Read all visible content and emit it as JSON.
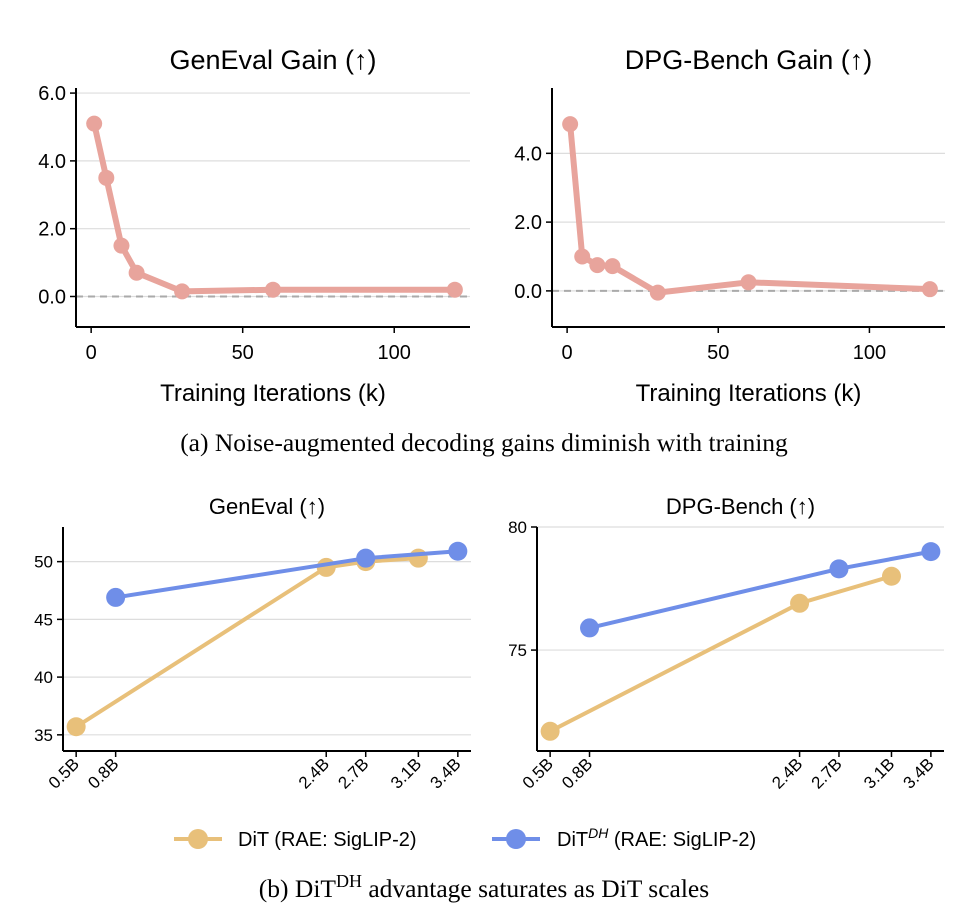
{
  "colors": {
    "gain": "#e8a49c",
    "dit": "#e8c07a",
    "dith": "#6f8ee8",
    "grid": "#dddddd",
    "zero_line": "#aaaaaa",
    "axis": "#000000"
  },
  "captions": {
    "a": "(a) Noise-augmented decoding gains diminish with training",
    "b_prefix": "(b) DiT",
    "b_sup": "DH",
    "b_suffix": " advantage saturates as DiT scales"
  },
  "legend": {
    "dit_label": "DiT (RAE: SigLIP-2)",
    "dith_base": "DiT",
    "dith_sup": "DH",
    "dith_suffix": " (RAE: SigLIP-2)"
  },
  "chart_data": [
    {
      "id": "geneval-gain",
      "type": "line",
      "title": "GenEval Gain (↑)",
      "xlabel": "Training Iterations (k)",
      "ylabel": "",
      "xlim": [
        -5,
        125
      ],
      "ylim": [
        -0.9,
        6.15
      ],
      "xticks": [
        0,
        50,
        100
      ],
      "xtick_labels": [
        "0",
        "50",
        "100"
      ],
      "yticks": [
        0.0,
        2.0,
        4.0,
        6.0
      ],
      "ytick_labels": [
        "0.0",
        "2.0",
        "4.0",
        "6.0"
      ],
      "grid": "y",
      "zero_line": true,
      "series": [
        {
          "name": "GenEval Gain",
          "x": [
            1,
            5,
            10,
            15,
            30,
            60,
            120
          ],
          "values": [
            5.1,
            3.5,
            1.5,
            0.7,
            0.15,
            0.2,
            0.2
          ]
        }
      ]
    },
    {
      "id": "dpg-gain",
      "type": "line",
      "title": "DPG-Bench Gain (↑)",
      "xlabel": "Training Iterations (k)",
      "ylabel": "",
      "xlim": [
        -5,
        125
      ],
      "ylim": [
        -1.05,
        5.9
      ],
      "xticks": [
        0,
        50,
        100
      ],
      "xtick_labels": [
        "0",
        "50",
        "100"
      ],
      "yticks": [
        0.0,
        2.0,
        4.0
      ],
      "ytick_labels": [
        "0.0",
        "2.0",
        "4.0"
      ],
      "grid": "y",
      "zero_line": true,
      "series": [
        {
          "name": "DPG-Bench Gain",
          "x": [
            1,
            5,
            10,
            15,
            30,
            60,
            120
          ],
          "values": [
            4.85,
            1.0,
            0.75,
            0.72,
            -0.05,
            0.25,
            0.05
          ]
        }
      ]
    },
    {
      "id": "geneval-scale",
      "type": "line",
      "title": "GenEval (↑)",
      "xlabel": "",
      "ylabel": "",
      "xlim": [
        0.4,
        3.5
      ],
      "ylim": [
        33.6,
        53.0
      ],
      "xticks": [
        0.5,
        0.8,
        2.4,
        2.7,
        3.1,
        3.4
      ],
      "xtick_labels": [
        "0.5B",
        "0.8B",
        "2.4B",
        "2.7B",
        "3.1B",
        "3.4B"
      ],
      "yticks": [
        35,
        40,
        45,
        50
      ],
      "ytick_labels": [
        "35",
        "40",
        "45",
        "50"
      ],
      "grid": "y",
      "zero_line": false,
      "series": [
        {
          "name": "DiT (RAE: SigLIP-2)",
          "color_key": "dit",
          "x": [
            0.5,
            2.4,
            2.7,
            3.1
          ],
          "values": [
            35.7,
            49.5,
            50.0,
            50.3
          ]
        },
        {
          "name": "DiT^DH (RAE: SigLIP-2)",
          "color_key": "dith",
          "x": [
            0.8,
            2.7,
            3.4
          ],
          "values": [
            46.9,
            50.3,
            50.9
          ]
        }
      ]
    },
    {
      "id": "dpg-scale",
      "type": "line",
      "title": "DPG-Bench (↑)",
      "xlabel": "",
      "ylabel": "",
      "xlim": [
        0.4,
        3.5
      ],
      "ylim": [
        70.9,
        80.0
      ],
      "xticks": [
        0.5,
        0.8,
        2.4,
        2.7,
        3.1,
        3.4
      ],
      "xtick_labels": [
        "0.5B",
        "0.8B",
        "2.4B",
        "2.7B",
        "3.1B",
        "3.4B"
      ],
      "yticks": [
        75,
        80
      ],
      "ytick_labels": [
        "75",
        "80"
      ],
      "grid": "y",
      "zero_line": false,
      "series": [
        {
          "name": "DiT (RAE: SigLIP-2)",
          "color_key": "dit",
          "x": [
            0.5,
            2.4,
            3.1
          ],
          "values": [
            71.7,
            76.9,
            78.0
          ]
        },
        {
          "name": "DiT^DH (RAE: SigLIP-2)",
          "color_key": "dith",
          "x": [
            0.8,
            2.7,
            3.4
          ],
          "values": [
            75.9,
            78.3,
            79.0
          ]
        }
      ]
    }
  ]
}
